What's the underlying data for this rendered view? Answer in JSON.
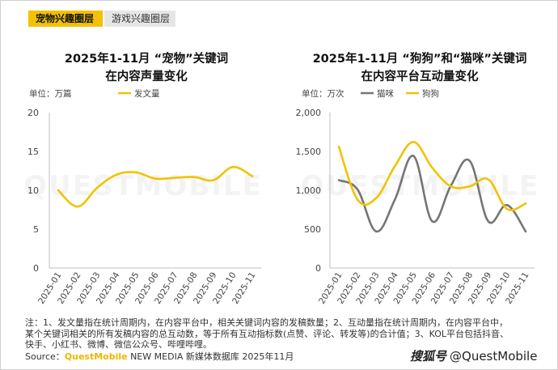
{
  "tabs": [
    {
      "label": "宠物兴趣圈层",
      "active": true
    },
    {
      "label": "游戏兴趣圈层",
      "active": false
    }
  ],
  "colors": {
    "yellow": "#f2c200",
    "gray": "#757575"
  },
  "chart_data": [
    {
      "type": "line",
      "title": "2025年1-11月 “宠物”关键词\n在内容声量变化",
      "unit": "单位：万篇",
      "categories": [
        "2025-01",
        "2025-02",
        "2025-03",
        "2025-04",
        "2025-05",
        "2025-06",
        "2025-07",
        "2025-08",
        "2025-09",
        "2025-10",
        "2025-11"
      ],
      "series": [
        {
          "name": "发文量",
          "color": "#f2c200",
          "values": [
            10,
            7.9,
            10.3,
            12.0,
            12.3,
            11.5,
            11.6,
            11.7,
            11.3,
            13.0,
            11.8
          ]
        }
      ],
      "ylim": [
        0,
        20
      ],
      "yticks": [
        "0",
        "5",
        "10",
        "15",
        "20"
      ],
      "ytick_values": [
        0,
        5,
        10,
        15,
        20
      ],
      "legend_position": "top"
    },
    {
      "type": "line",
      "title": "2025年1-11月 “狗狗”和“猫咪”关键词\n在内容平台互动量变化",
      "unit": "单位：万次",
      "categories": [
        "2025-01",
        "2025-02",
        "2025-03",
        "2025-04",
        "2025-05",
        "2025-06",
        "2025-07",
        "2025-08",
        "2025-09",
        "2025-10",
        "2025-11"
      ],
      "series": [
        {
          "name": "猫咪",
          "color": "#757575",
          "values": [
            1130,
            1010,
            470,
            880,
            1440,
            600,
            1060,
            1380,
            600,
            810,
            470
          ]
        },
        {
          "name": "狗狗",
          "color": "#f2c200",
          "values": [
            1560,
            880,
            900,
            1310,
            1620,
            1290,
            1050,
            1050,
            1140,
            760,
            830
          ]
        }
      ],
      "ylim": [
        0,
        2000
      ],
      "yticks": [
        "0",
        "500",
        "1,000",
        "1,500",
        "2,000"
      ],
      "ytick_values": [
        0,
        500,
        1000,
        1500,
        2000
      ],
      "legend_position": "top"
    }
  ],
  "footnote": [
    "注：1、发文量指在统计周期内，在内容平台中，相关关键词内容的发稿数量；2、互动量指在统计周期内，在内容平台中，",
    "某个关键词相关的所有发稿内容的总互动数，等于所有互动指标数(点赞、评论、转发等)的合计值；3、KOL平台包括抖音、",
    "快手、小红书、微博、微信公众号、哔哩哔哩。"
  ],
  "source": {
    "prefix": "Source：",
    "brand": "QuestMobile",
    "rest": " NEW MEDIA 新媒体数据库 2025年11月"
  },
  "watermark": {
    "logo": "搜狐号",
    "text": "@QuestMobile"
  },
  "bg_watermark": "QUESTMOBILE"
}
